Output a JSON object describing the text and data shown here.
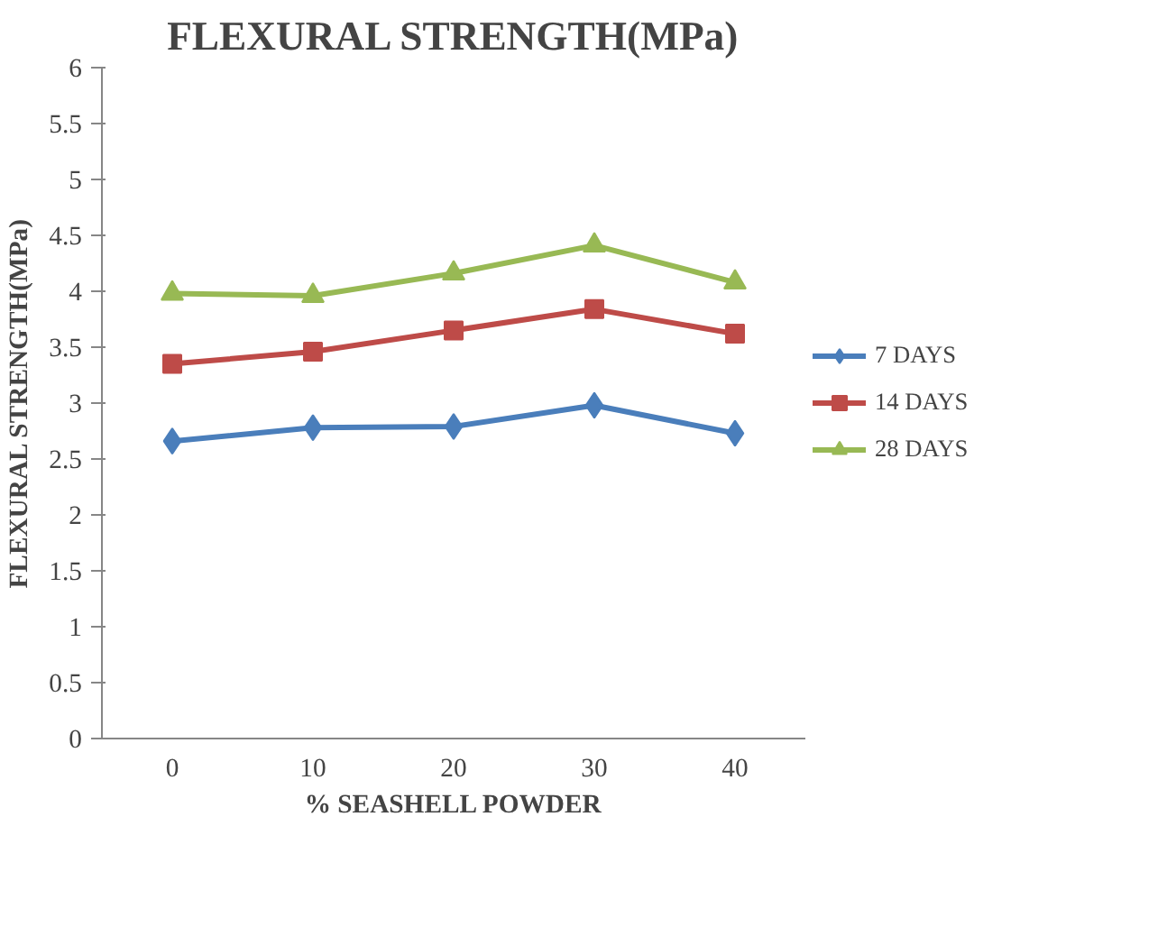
{
  "chart_data": {
    "type": "line",
    "title": "FLEXURAL STRENGTH(MPa)",
    "xlabel": "% SEASHELL POWDER",
    "ylabel": "FLEXURAL STRENGTH(MPa)",
    "categories": [
      "0",
      "10",
      "20",
      "30",
      "40"
    ],
    "series": [
      {
        "name": "7 DAYS",
        "color": "#4a7ebb",
        "marker": "diamond",
        "values": [
          2.66,
          2.78,
          2.79,
          2.98,
          2.73
        ]
      },
      {
        "name": "14 DAYS",
        "color": "#be4b48",
        "marker": "square",
        "values": [
          3.35,
          3.46,
          3.65,
          3.84,
          3.62
        ]
      },
      {
        "name": "28 DAYS",
        "color": "#98b954",
        "marker": "triangle",
        "values": [
          3.98,
          3.96,
          4.16,
          4.41,
          4.08
        ]
      }
    ],
    "ylim": [
      0,
      6
    ],
    "yticks": [
      0,
      0.5,
      1,
      1.5,
      2,
      2.5,
      3,
      3.5,
      4,
      4.5,
      5,
      5.5,
      6
    ],
    "grid": false,
    "legend": "right",
    "line_style": "solid"
  }
}
